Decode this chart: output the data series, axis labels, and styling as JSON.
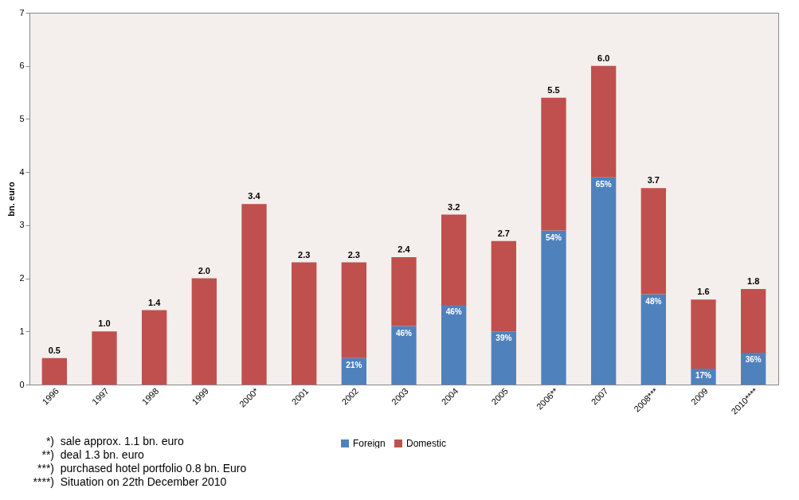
{
  "chart_data": {
    "type": "bar",
    "stacked": true,
    "ylabel": "bn. euro",
    "categories": [
      "1996",
      "1997",
      "1998",
      "1999",
      "2000*",
      "2001",
      "2002",
      "2003",
      "2004",
      "2005",
      "2006**",
      "2007",
      "2008***",
      "2009",
      "2010****"
    ],
    "series": [
      {
        "name": "Foreign",
        "color": "#4f81bd",
        "values": [
          null,
          null,
          null,
          null,
          null,
          null,
          0.5,
          1.1,
          1.5,
          1.0,
          2.9,
          3.9,
          1.7,
          0.3,
          0.6
        ]
      },
      {
        "name": "Domestic",
        "color": "#c0504d",
        "values": [
          0.5,
          1.0,
          1.4,
          2.0,
          3.4,
          2.3,
          1.8,
          1.3,
          1.7,
          1.7,
          2.5,
          2.1,
          2.0,
          1.3,
          1.2
        ]
      }
    ],
    "totals": [
      "0.5",
      "1.0",
      "1.4",
      "2.0",
      "3.4",
      "2.3",
      "2.3",
      "2.4",
      "3.2",
      "2.7",
      "5.5",
      "6.0",
      "3.7",
      "1.6",
      "1.8"
    ],
    "ylim": [
      0,
      7
    ],
    "yticks": [
      0,
      1,
      2,
      3,
      4,
      5,
      6,
      7
    ],
    "grid": false,
    "legend": "bottom",
    "annotations": [
      {
        "text": "21%",
        "x": "2002",
        "y": 0.5
      },
      {
        "text": "46%",
        "x": "2003",
        "y": 1.1
      },
      {
        "text": "46%",
        "x": "2004",
        "y": 1.5
      },
      {
        "text": "39%",
        "x": "2005",
        "y": 1.0
      },
      {
        "text": "54%",
        "x": "2006**",
        "y": 2.9
      },
      {
        "text": "65%",
        "x": "2007",
        "y": 3.9
      },
      {
        "text": "48%",
        "x": "2008***",
        "y": 1.7
      },
      {
        "text": "17%",
        "x": "2009",
        "y": 0.3
      },
      {
        "text": "36%",
        "x": "2010****",
        "y": 0.6
      },
      "*)  sale approx. 1.1 bn. euro",
      "**)  deal 1.3 bn. euro",
      "***)  purchased hotel portfolio 0.8 bn. Euro",
      "****)  Situation on 22th December 2010"
    ]
  }
}
